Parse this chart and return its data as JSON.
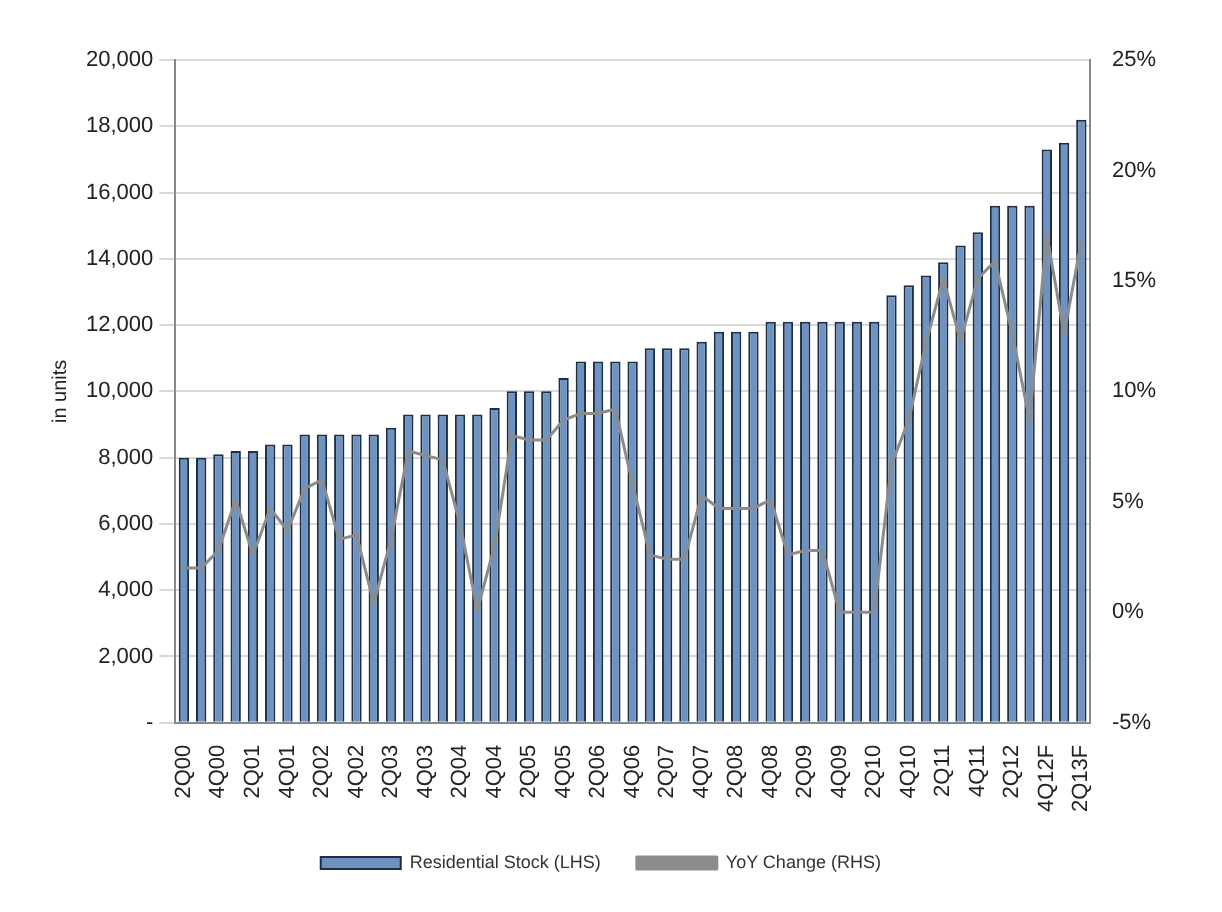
{
  "chart_data": {
    "type": "bar",
    "ylabel": "in units",
    "categories": [
      "2Q00",
      null,
      "4Q00",
      null,
      "2Q01",
      null,
      "4Q01",
      null,
      "2Q02",
      null,
      "4Q02",
      null,
      "2Q03",
      null,
      "4Q03",
      null,
      "2Q04",
      null,
      "4Q04",
      null,
      "2Q05",
      null,
      "4Q05",
      null,
      "2Q06",
      null,
      "4Q06",
      null,
      "2Q07",
      null,
      "4Q07",
      null,
      "2Q08",
      null,
      "4Q08",
      null,
      "2Q09",
      null,
      "4Q09",
      null,
      "2Q10",
      null,
      "4Q10",
      null,
      "2Q11",
      null,
      "4Q11",
      null,
      "2Q12",
      null,
      "4Q12F",
      null,
      "2Q13F"
    ],
    "series": [
      {
        "name": "Residential Stock (LHS)",
        "color": "#6f93c0",
        "values": [
          8000,
          8000,
          8100,
          8200,
          8200,
          8400,
          8400,
          8700,
          8700,
          8700,
          8700,
          8700,
          8900,
          9300,
          9300,
          9300,
          9300,
          9300,
          9500,
          10000,
          10000,
          10000,
          10400,
          10900,
          10900,
          10900,
          10900,
          11300,
          11300,
          11300,
          11500,
          11800,
          11800,
          11800,
          12100,
          12100,
          12100,
          12100,
          12100,
          12100,
          12100,
          12900,
          13200,
          13500,
          13900,
          14400,
          14800,
          15600,
          15600,
          15600,
          17300,
          17500,
          18200
        ]
      },
      {
        "name": "YoY Change (RHS)",
        "type": "line",
        "axis": "y2",
        "color": "#8c8c8c",
        "values": [
          2.0,
          2.0,
          2.8,
          5.1,
          2.6,
          4.7,
          3.7,
          5.6,
          6.0,
          3.3,
          3.5,
          0.4,
          3.3,
          7.3,
          7.1,
          6.9,
          4.0,
          0.1,
          3.0,
          8.0,
          7.8,
          7.8,
          8.7,
          9.0,
          9.0,
          9.2,
          5.8,
          2.6,
          2.4,
          2.4,
          5.3,
          4.7,
          4.7,
          4.7,
          5.1,
          2.6,
          2.8,
          2.8,
          0,
          0,
          0,
          6.7,
          8.7,
          12.2,
          15.1,
          12.3,
          15.1,
          15.9,
          12.6,
          8.7,
          17.1,
          12.6,
          16.8
        ]
      }
    ],
    "ylim": [
      0,
      20000
    ],
    "yticks": [
      {
        "value": 0,
        "label": "-"
      },
      {
        "value": 2000,
        "label": "2,000"
      },
      {
        "value": 4000,
        "label": "4,000"
      },
      {
        "value": 6000,
        "label": "6,000"
      },
      {
        "value": 8000,
        "label": "8,000"
      },
      {
        "value": 10000,
        "label": "10,000"
      },
      {
        "value": 12000,
        "label": "12,000"
      },
      {
        "value": 14000,
        "label": "14,000"
      },
      {
        "value": 16000,
        "label": "16,000"
      },
      {
        "value": 18000,
        "label": "18,000"
      },
      {
        "value": 20000,
        "label": "20,000"
      }
    ],
    "y2lim": [
      -5,
      25
    ],
    "y2ticks": [
      {
        "value": -5,
        "label": "-5%"
      },
      {
        "value": 0,
        "label": "0%"
      },
      {
        "value": 5,
        "label": "5%"
      },
      {
        "value": 10,
        "label": "10%"
      },
      {
        "value": 15,
        "label": "15%"
      },
      {
        "value": 20,
        "label": "20%"
      },
      {
        "value": 25,
        "label": "25%"
      }
    ],
    "grid": "y",
    "legend": "bottom",
    "marker": "none",
    "line_style": "solid"
  }
}
